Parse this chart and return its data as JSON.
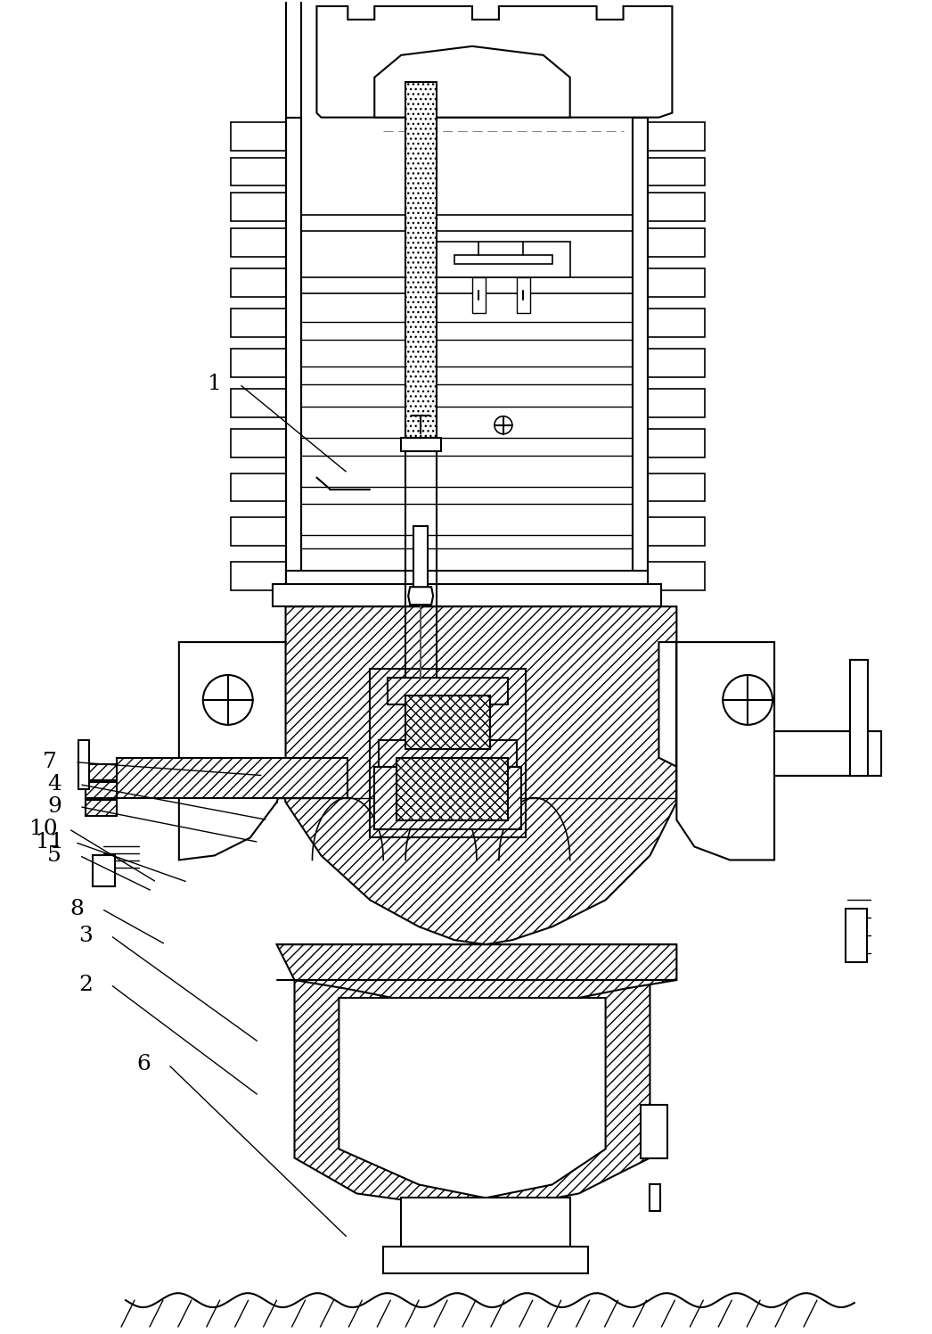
{
  "background_color": "#ffffff",
  "line_color": "#000000",
  "fig_width": 10.46,
  "fig_height": 14.96,
  "callouts": [
    [
      "1",
      240,
      430,
      390,
      530
    ],
    [
      "2",
      95,
      1105,
      290,
      1230
    ],
    [
      "3",
      95,
      1050,
      290,
      1170
    ],
    [
      "4",
      60,
      880,
      300,
      920
    ],
    [
      "5",
      60,
      960,
      170,
      1000
    ],
    [
      "6",
      160,
      1195,
      390,
      1390
    ],
    [
      "7",
      55,
      855,
      295,
      870
    ],
    [
      "8",
      85,
      1020,
      185,
      1060
    ],
    [
      "9",
      60,
      905,
      290,
      945
    ],
    [
      "10",
      48,
      930,
      175,
      990
    ],
    [
      "11",
      55,
      945,
      210,
      990
    ]
  ]
}
